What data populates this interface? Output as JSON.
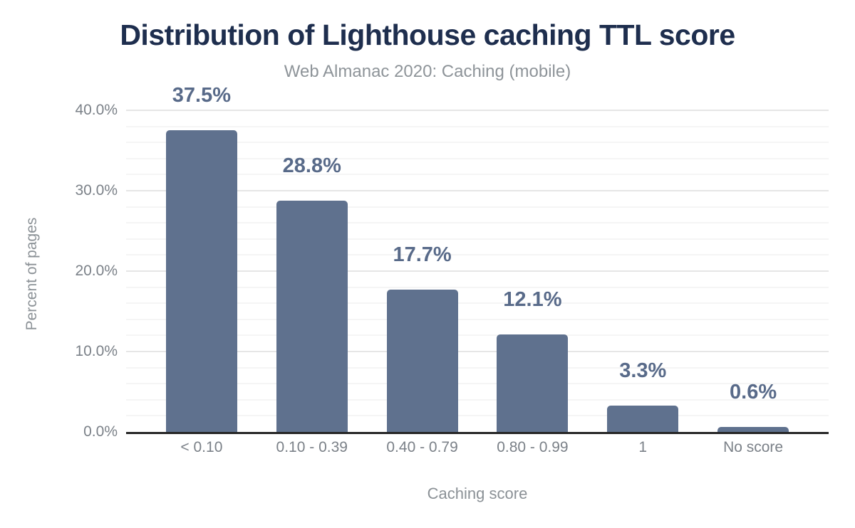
{
  "chart_data": {
    "type": "bar",
    "title": "Distribution of Lighthouse caching TTL score",
    "subtitle": "Web Almanac 2020: Caching (mobile)",
    "categories": [
      "< 0.10",
      "0.10 - 0.39",
      "0.40 - 0.79",
      "0.80 - 0.99",
      "1",
      "No score"
    ],
    "values": [
      37.5,
      28.8,
      17.7,
      12.1,
      3.3,
      0.6
    ],
    "value_labels": [
      "37.5%",
      "28.8%",
      "17.7%",
      "12.1%",
      "3.3%",
      "0.6%"
    ],
    "xlabel": "Caching score",
    "ylabel": "Percent of pages",
    "ylim": [
      0,
      40
    ],
    "y_ticks": [
      {
        "value": 0,
        "label": "0.0%"
      },
      {
        "value": 10,
        "label": "10.0%"
      },
      {
        "value": 20,
        "label": "20.0%"
      },
      {
        "value": 30,
        "label": "30.0%"
      },
      {
        "value": 40,
        "label": "40.0%"
      }
    ],
    "grid": {
      "minor_step_pct": 2,
      "major_step_pct": 10,
      "orientation": "horizontal"
    },
    "legend": "none",
    "colors": {
      "background": "#ffffff",
      "bar": "#5f718e",
      "data_label": "#586a89",
      "title": "#1e2e4e",
      "subtitle": "#8e9499",
      "tick_label": "#7b8188",
      "axis_title": "#8b9196",
      "axis_line": "#262626",
      "grid_major": "#e6e6e6",
      "grid_minor": "#f5f5f5"
    }
  }
}
